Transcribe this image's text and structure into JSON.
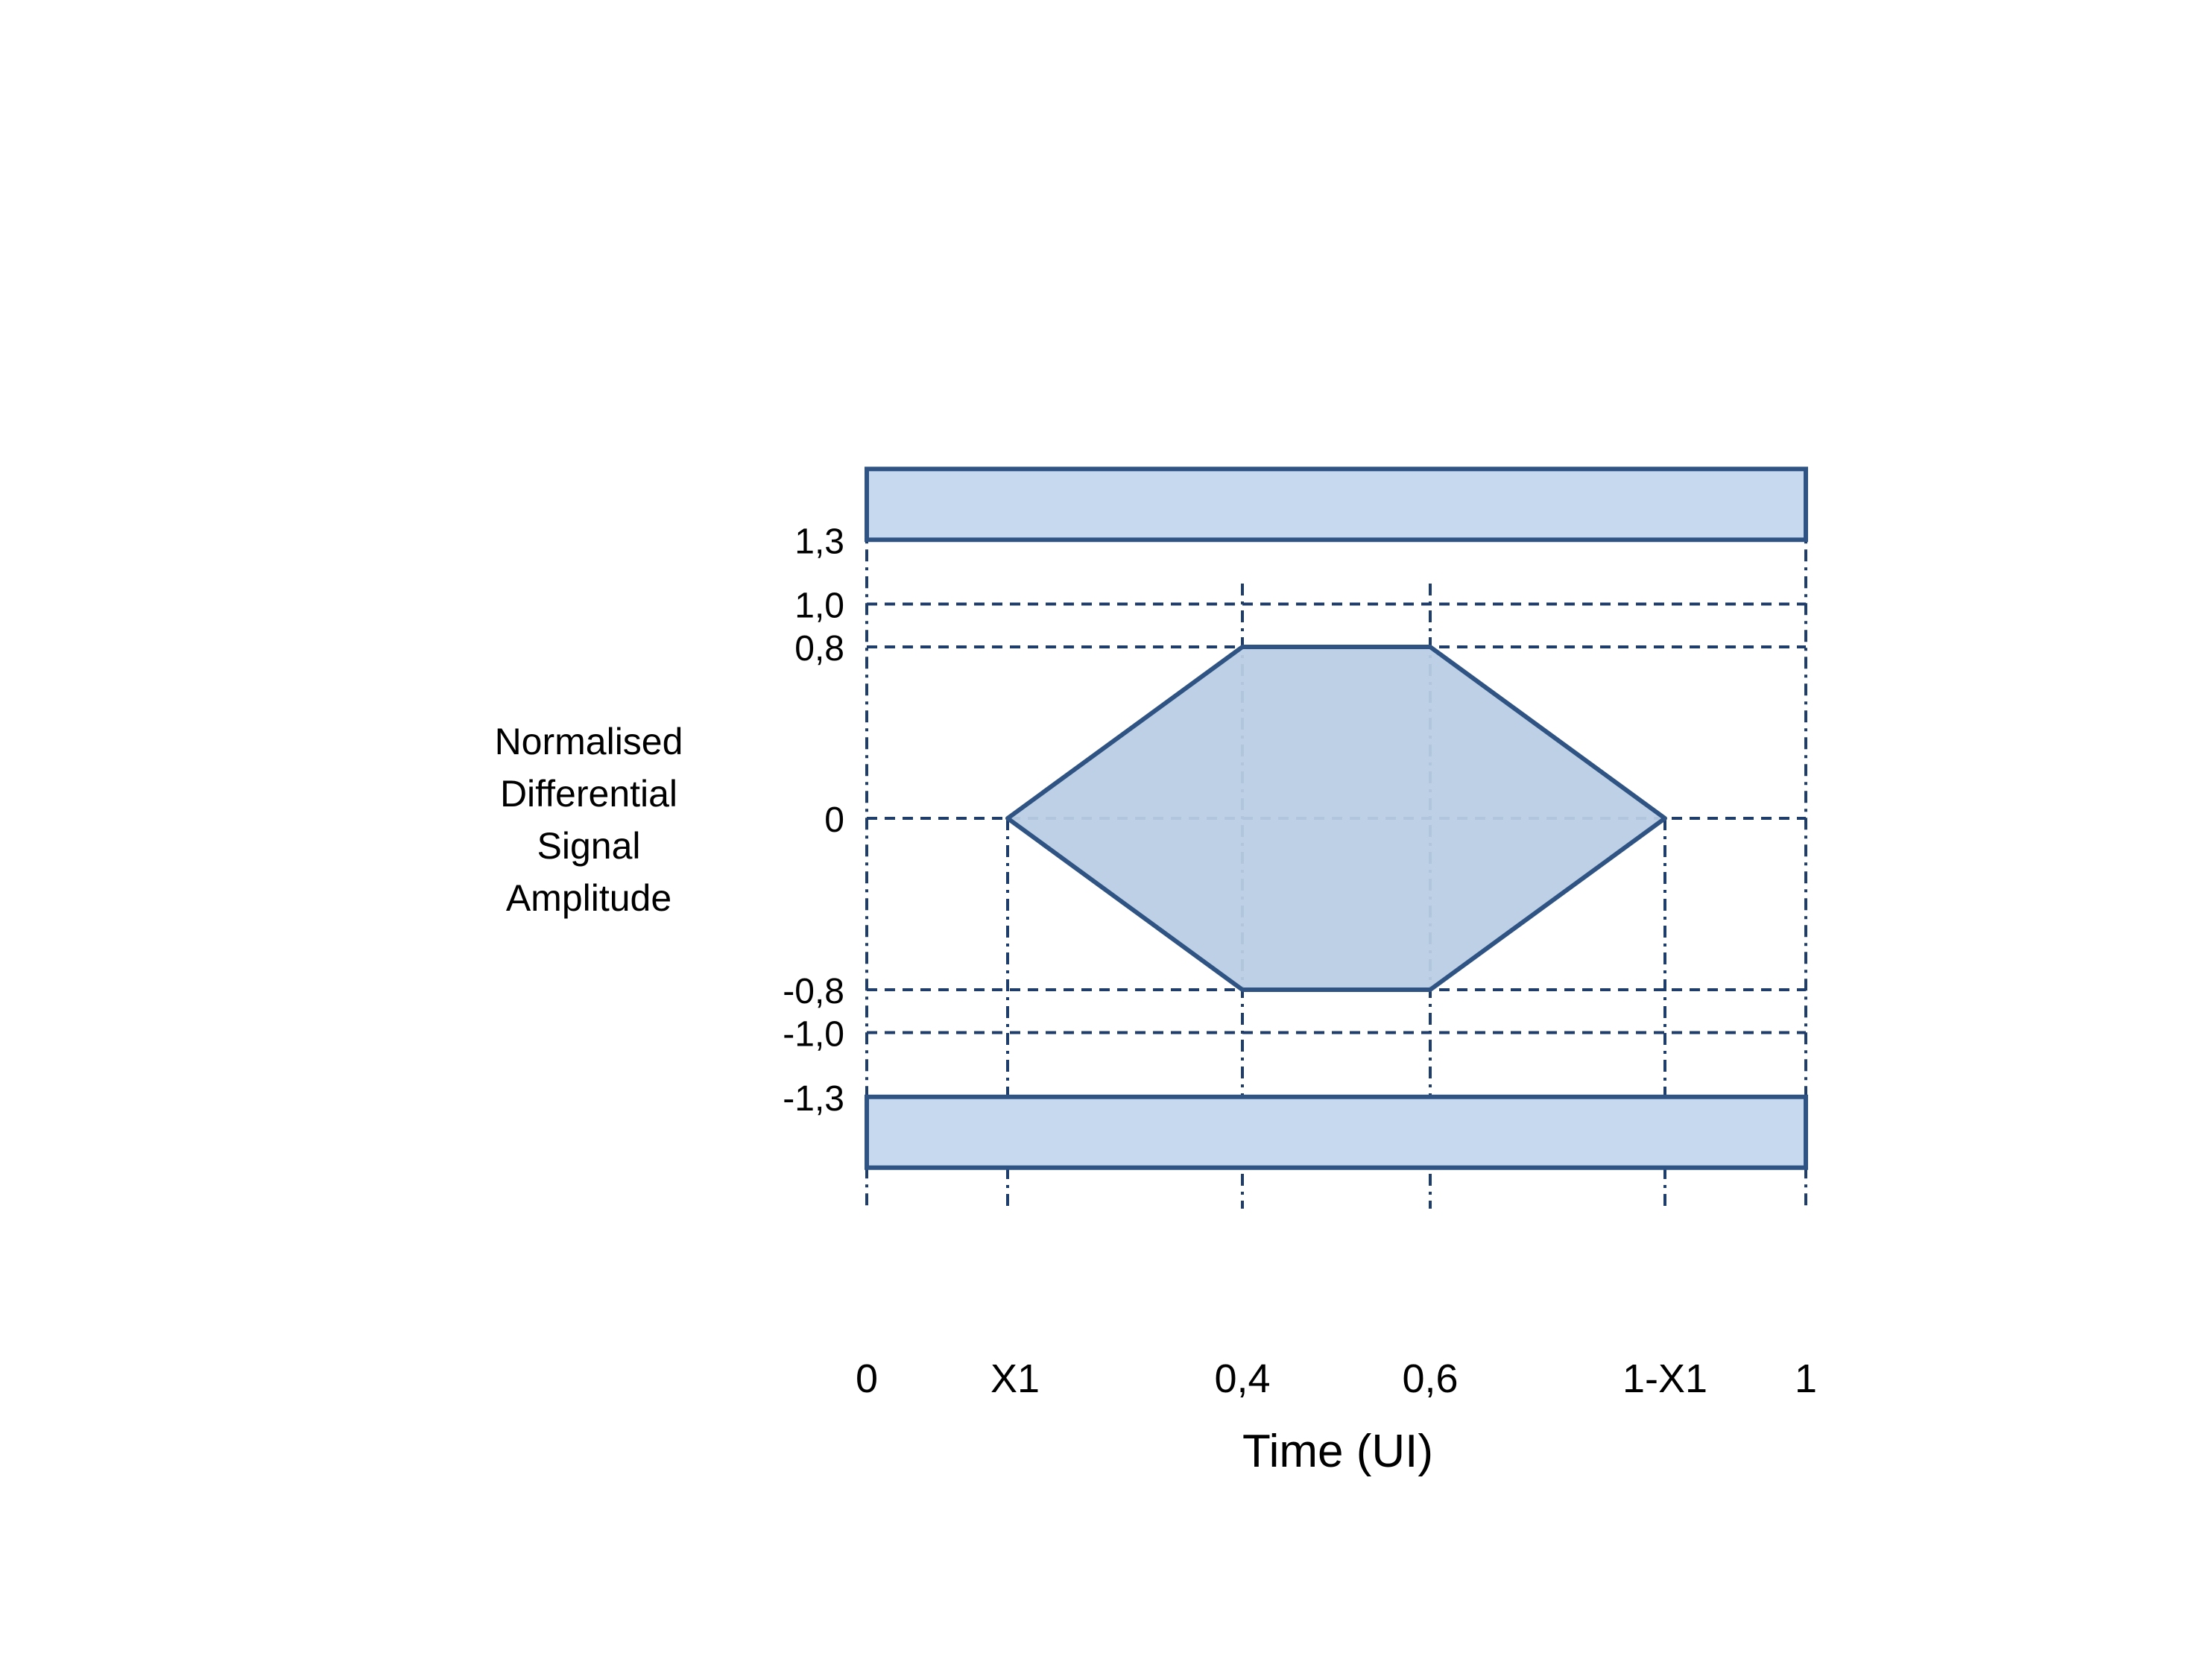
{
  "y_axis": {
    "title_lines": [
      "Normalised",
      "Differential",
      "Signal",
      "Amplitude"
    ],
    "ticks": [
      {
        "value": 1.3,
        "label": "1,3"
      },
      {
        "value": 1.0,
        "label": "1,0"
      },
      {
        "value": 0.8,
        "label": "0,8"
      },
      {
        "value": 0,
        "label": "0"
      },
      {
        "value": -0.8,
        "label": "-0,8"
      },
      {
        "value": -1.0,
        "label": "-1,0"
      },
      {
        "value": -1.3,
        "label": "-1,3"
      }
    ]
  },
  "x_axis": {
    "title": "Time (UI)",
    "ticks": [
      {
        "value": 0,
        "label": "0"
      },
      {
        "value": 0.15,
        "label": "X1"
      },
      {
        "value": 0.4,
        "label": "0,4"
      },
      {
        "value": 0.6,
        "label": "0,6"
      },
      {
        "value": 0.85,
        "label": "1-X1"
      },
      {
        "value": 1,
        "label": "1"
      }
    ]
  },
  "eye_mask": {
    "points": [
      [
        0.15,
        0
      ],
      [
        0.4,
        0.8
      ],
      [
        0.6,
        0.8
      ],
      [
        0.85,
        0
      ],
      [
        0.6,
        -0.8
      ],
      [
        0.4,
        -0.8
      ]
    ]
  },
  "colors": {
    "outline": "#2f5483",
    "eye_fill": "#b9cde4",
    "bar_fill": "#c7d9ef",
    "gridline": "#1f3d6b"
  }
}
